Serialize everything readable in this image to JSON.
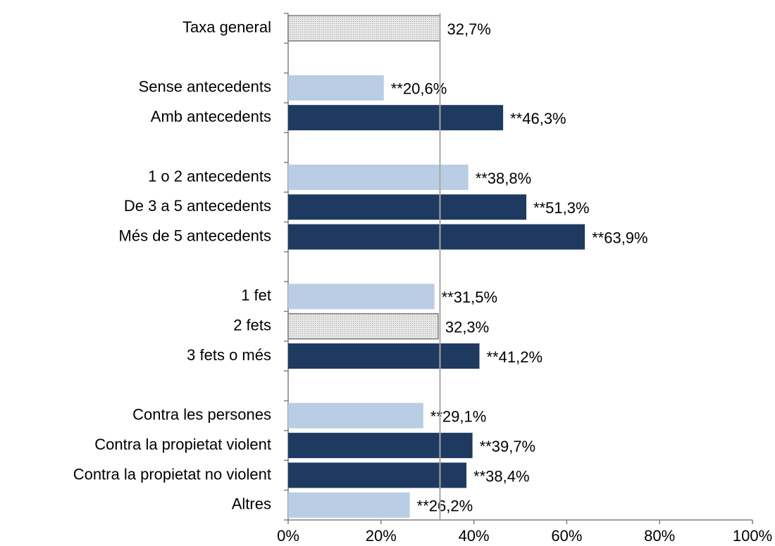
{
  "chart_data": {
    "type": "hbar",
    "categories": [
      "Taxa general",
      null,
      "Sense antecedents",
      "Amb antecedents",
      null,
      "1 o 2 antecedents",
      "De 3 a 5 antecedents",
      "Més de 5 antecedents",
      null,
      "1 fet",
      "2 fets",
      "3 fets o més",
      null,
      "Contra les persones",
      "Contra la propietat violent",
      "Contra la propietat no violent",
      "Altres"
    ],
    "values": [
      32.7,
      null,
      20.6,
      46.3,
      null,
      38.8,
      51.3,
      63.9,
      null,
      31.5,
      32.3,
      41.2,
      null,
      29.1,
      39.7,
      38.4,
      26.2
    ],
    "value_labels": [
      "32,7%",
      null,
      "**20,6%",
      "**46,3%",
      null,
      "**38,8%",
      "**51,3%",
      "**63,9%",
      null,
      "**31,5%",
      "32,3%",
      "**41,2%",
      null,
      "**29,1%",
      "**39,7%",
      "**38,4%",
      "**26,2%"
    ],
    "colors": [
      "#d9d9d9",
      null,
      "#b9cde5",
      "#1f3a60",
      null,
      "#b9cde5",
      "#1f3a60",
      "#1f3a60",
      null,
      "#b9cde5",
      "#d9d9d9",
      "#1f3a60",
      null,
      "#b9cde5",
      "#1f3a60",
      "#1f3a60",
      "#b9cde5"
    ],
    "xlim": [
      0,
      100
    ],
    "xticks": [
      {
        "value": 0,
        "label": "0%"
      },
      {
        "value": 20,
        "label": "20%"
      },
      {
        "value": 40,
        "label": "40%"
      },
      {
        "value": 60,
        "label": "60%"
      },
      {
        "value": 80,
        "label": "80%"
      },
      {
        "value": 100,
        "label": "100%"
      }
    ]
  }
}
